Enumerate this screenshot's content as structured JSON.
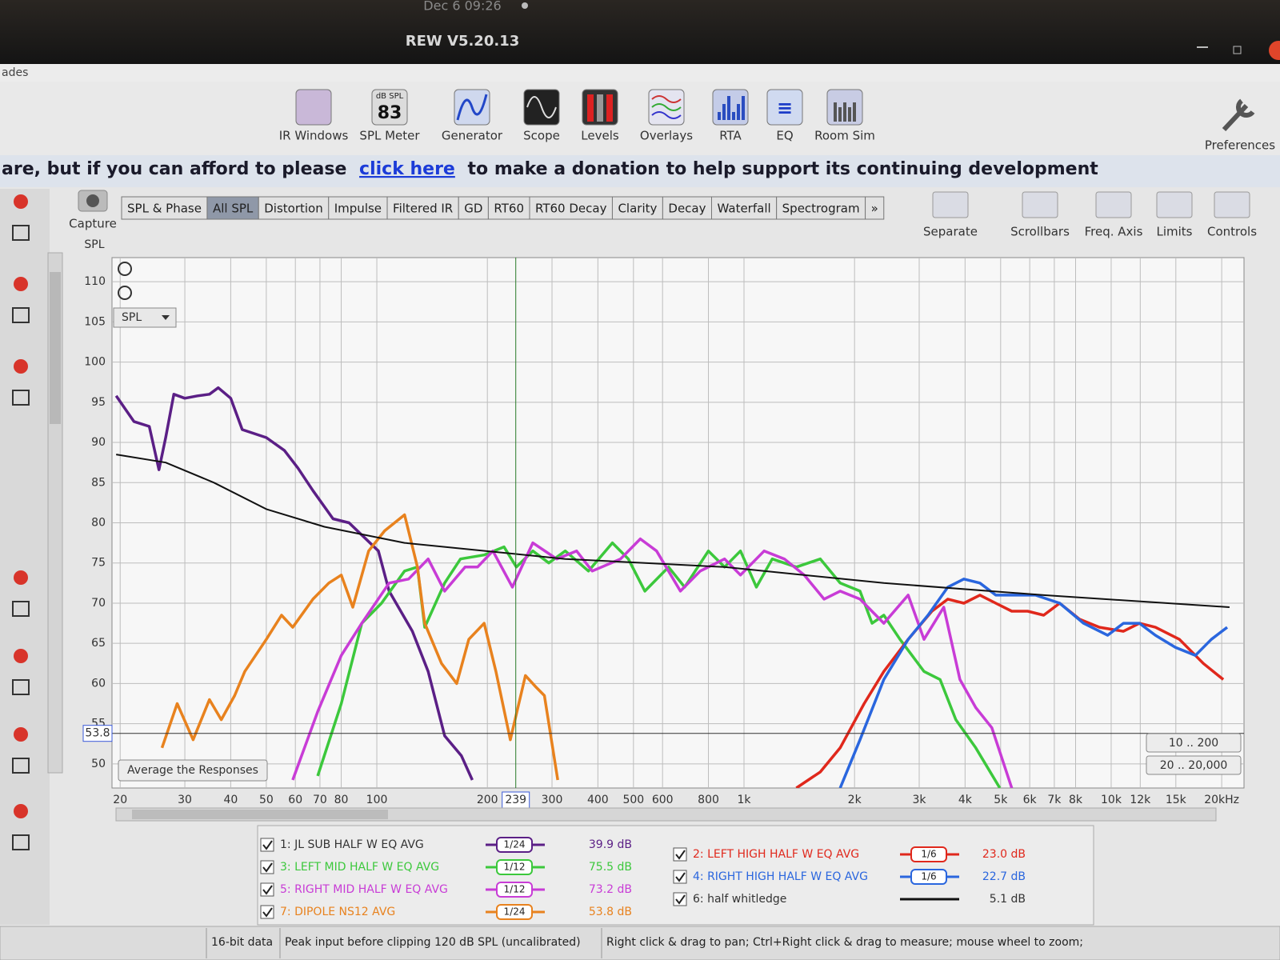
{
  "system_bar": {
    "clock": "Dec 6 09:26"
  },
  "window": {
    "title": "REW V5.20.13"
  },
  "menu": {
    "fragment": "ades"
  },
  "toolbar": [
    {
      "label": "IR Windows"
    },
    {
      "label": "SPL Meter",
      "meter_unit": "dB SPL",
      "meter_value": 83
    },
    {
      "label": "Generator"
    },
    {
      "label": "Scope"
    },
    {
      "label": "Levels"
    },
    {
      "label": "Overlays"
    },
    {
      "label": "RTA"
    },
    {
      "label": "EQ"
    },
    {
      "label": "Room Sim"
    },
    {
      "label": "Preferences"
    }
  ],
  "banner": {
    "before": "are, but if you can afford to please",
    "link": "click here",
    "after": "to make a donation to help support its continuing development"
  },
  "capture": "Capture",
  "tabs": [
    "SPL & Phase",
    "All SPL",
    "Distortion",
    "Impulse",
    "Filtered IR",
    "GD",
    "RT60",
    "RT60 Decay",
    "Clarity",
    "Decay",
    "Waterfall",
    "Spectrogram",
    "»"
  ],
  "active_tab": 1,
  "graph_tools": [
    "Separate",
    "Scrollbars",
    "Freq. Axis",
    "Limits",
    "Controls"
  ],
  "chart_data": {
    "type": "line",
    "ylabel": "SPL",
    "dropdown": "SPL",
    "xscale": "log",
    "grid": true,
    "xlim": [
      19,
      23000
    ],
    "ylim": [
      47,
      113
    ],
    "yticks": [
      50,
      55,
      60,
      65,
      70,
      75,
      80,
      85,
      90,
      95,
      100,
      105,
      110
    ],
    "xticks": [
      20,
      30,
      40,
      50,
      60,
      70,
      80,
      100,
      200,
      300,
      400,
      500,
      600,
      800,
      {
        "value": 1000,
        "label": "1k"
      },
      {
        "value": 2000,
        "label": "2k"
      },
      {
        "value": 3000,
        "label": "3k"
      },
      {
        "value": 4000,
        "label": "4k"
      },
      {
        "value": 5000,
        "label": "5k"
      },
      {
        "value": 6000,
        "label": "6k"
      },
      {
        "value": 7000,
        "label": "7k"
      },
      {
        "value": 8000,
        "label": "8k"
      },
      {
        "value": 10000,
        "label": "10k"
      },
      {
        "value": 12000,
        "label": "12k"
      },
      {
        "value": 15000,
        "label": "15k"
      },
      {
        "value": 20000,
        "label": "20kHz"
      }
    ],
    "cursor": {
      "x": 239,
      "y": 53.8
    },
    "average_button": "Average the Responses",
    "range_buttons": [
      "10 .. 200",
      "20 .. 20,000"
    ],
    "series": [
      {
        "name": "1: JL SUB HALF W EQ AVG",
        "color": "#5b1f86",
        "smoothing": "1/24",
        "level": {
          "value": 39.9,
          "label": "39.9 dB"
        },
        "x": [
          19.5,
          21.8,
          24,
          25.5,
          26.6,
          28,
          30,
          32.5,
          35,
          37,
          40,
          43,
          50,
          56,
          61,
          67,
          76,
          84,
          101,
          108,
          125,
          138,
          153,
          170,
          182
        ],
        "values": [
          95.8,
          92.6,
          92,
          86.6,
          90.6,
          96,
          95.5,
          95.8,
          96,
          96.8,
          95.5,
          91.6,
          90.6,
          89,
          86.8,
          84,
          80.5,
          80,
          76.5,
          71.5,
          66.5,
          61.5,
          53.5,
          51,
          48
        ]
      },
      {
        "name": "3: LEFT MID HALF W EQ AVG",
        "color": "#3cc83c",
        "smoothing": "1/12",
        "level": {
          "value": 75.5,
          "label": "75.5 dB"
        },
        "x": [
          69,
          80,
          91,
          103,
          119,
          129,
          135,
          153,
          169,
          196,
          222,
          240,
          266,
          294,
          326,
          377,
          438,
          484,
          537,
          623,
          689,
          800,
          885,
          978,
          1081,
          1194,
          1388,
          1614,
          1828,
          2070,
          2233,
          2403,
          2660,
          3092,
          3420,
          3776,
          4277,
          4975
        ],
        "values": [
          48.5,
          57.5,
          67.5,
          70,
          74,
          74.5,
          67,
          72.5,
          75.5,
          76,
          77,
          74.5,
          76.5,
          75,
          76.5,
          74,
          77.5,
          75.5,
          71.5,
          74.5,
          72,
          76.5,
          74.5,
          76.5,
          72,
          75.5,
          74.5,
          75.5,
          72.5,
          71.5,
          67.5,
          68.5,
          65.5,
          61.5,
          60.5,
          55.5,
          52,
          47
        ]
      },
      {
        "name": "5: RIGHT MID HALF W EQ AVG",
        "color": "#c83cd6",
        "smoothing": "1/12",
        "level": {
          "value": 73.2,
          "label": "73.2 dB"
        },
        "x": [
          59,
          69,
          80,
          91,
          108,
          122,
          138,
          153,
          174,
          188,
          207,
          234,
          266,
          309,
          350,
          386,
          461,
          522,
          578,
          671,
          760,
          885,
          978,
          1135,
          1288,
          1459,
          1652,
          1828,
          2070,
          2403,
          2800,
          3092,
          3500,
          3873,
          4277,
          4732,
          5360
        ],
        "values": [
          48,
          56.5,
          63.5,
          67.5,
          72.5,
          73,
          75.5,
          71.5,
          74.5,
          74.5,
          76.5,
          72,
          77.5,
          75.5,
          76.5,
          74,
          75.5,
          78,
          76.5,
          71.5,
          74,
          75.5,
          73.5,
          76.5,
          75.5,
          73.5,
          70.5,
          71.5,
          70.5,
          67.5,
          71,
          65.5,
          69.5,
          60.5,
          57,
          54.5,
          47
        ]
      },
      {
        "name": "7: DIPOLE NS12 AVG",
        "color": "#e8821e",
        "smoothing": "1/24",
        "level": {
          "value": 53.8,
          "label": "53.8 dB"
        },
        "x": [
          26,
          28.6,
          31.6,
          35,
          37.7,
          41,
          43.7,
          50,
          55,
          59,
          67,
          74,
          80,
          86,
          95,
          105,
          119,
          129,
          135,
          150,
          165,
          178,
          196,
          211,
          231,
          254,
          272,
          286,
          311
        ],
        "values": [
          52,
          57.5,
          53,
          58,
          55.5,
          58.5,
          61.5,
          65.5,
          68.5,
          67,
          70.5,
          72.5,
          73.5,
          69.5,
          76.5,
          79,
          81,
          74.5,
          67.5,
          62.5,
          60,
          65.5,
          67.5,
          61.5,
          53,
          61,
          59.5,
          58.5,
          48
        ]
      },
      {
        "name": "2: LEFT HIGH HALF W EQ AVG",
        "color": "#e0281c",
        "smoothing": "1/6",
        "level": {
          "value": 23.0,
          "label": "23.0 dB"
        },
        "x": [
          1388,
          1614,
          1828,
          2124,
          2403,
          2800,
          3250,
          3590,
          3970,
          4390,
          4850,
          5360,
          5925,
          6550,
          7240,
          8200,
          9290,
          10800,
          11940,
          13200,
          15340,
          17830,
          20200
        ],
        "values": [
          47,
          49,
          52,
          57.5,
          61.5,
          65.5,
          69,
          70.5,
          70,
          71,
          70,
          69,
          69,
          68.5,
          70,
          68,
          67,
          66.5,
          67.5,
          67,
          65.5,
          62.5,
          60.5
        ]
      },
      {
        "name": "4: RIGHT HIGH HALF W EQ AVG",
        "color": "#2a66de",
        "smoothing": "1/6",
        "level": {
          "value": 22.7,
          "label": "22.7 dB"
        },
        "x": [
          1828,
          2070,
          2403,
          2800,
          3170,
          3590,
          3970,
          4390,
          4850,
          5490,
          6220,
          7240,
          8410,
          9780,
          10800,
          11940,
          13200,
          14960,
          16950,
          18740,
          20700
        ],
        "values": [
          47,
          53,
          60.5,
          65.5,
          68.5,
          72,
          73,
          72.5,
          71,
          71,
          71,
          70,
          67.5,
          66,
          67.5,
          67.5,
          66,
          64.5,
          63.5,
          65.5,
          67
        ]
      },
      {
        "name": "6: half whitledge",
        "color": "#111111",
        "level": {
          "value": 5.1,
          "label": "5.1 dB"
        },
        "x": [
          19.5,
          26.6,
          36,
          50,
          72,
          119,
          326,
          885,
          2403,
          6550,
          21000
        ],
        "values": [
          88.5,
          87.5,
          85,
          81.7,
          79.5,
          77.5,
          75.5,
          74.5,
          72.5,
          71,
          69.5
        ]
      }
    ]
  },
  "status_bar": [
    "16-bit data",
    "Peak input before clipping 120 dB SPL (uncalibrated)",
    "Right click & drag to pan; Ctrl+Right click & drag to measure; mouse wheel to zoom;"
  ]
}
